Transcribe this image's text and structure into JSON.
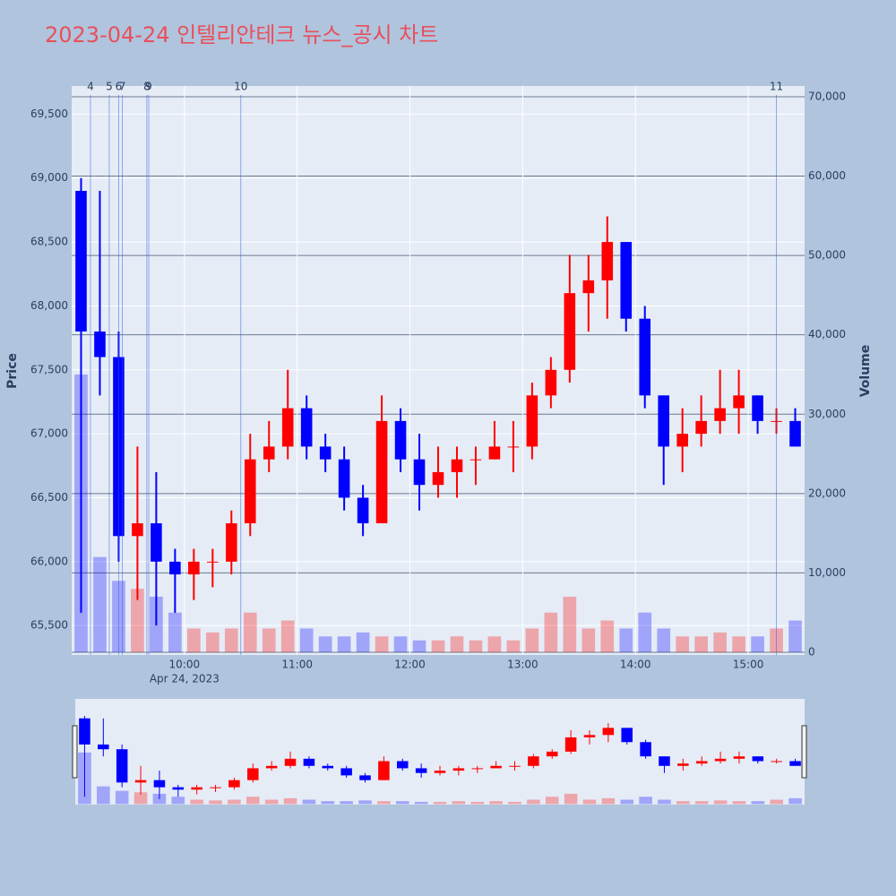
{
  "chart_data": {
    "type": "candlestick",
    "title": "2023-04-24 인텔리안테크 뉴스_공시 차트",
    "x": [
      "09:00",
      "09:10",
      "09:20",
      "09:30",
      "09:40",
      "09:50",
      "10:00",
      "10:10",
      "10:20",
      "10:30",
      "10:40",
      "10:50",
      "11:00",
      "11:10",
      "11:20",
      "11:30",
      "11:40",
      "11:50",
      "12:00",
      "12:10",
      "12:20",
      "12:30",
      "12:40",
      "12:50",
      "13:00",
      "13:10",
      "13:20",
      "13:30",
      "13:40",
      "13:50",
      "14:00",
      "14:10",
      "14:20",
      "14:30",
      "14:40",
      "14:50",
      "15:00",
      "15:10",
      "15:20"
    ],
    "open": [
      68900,
      67800,
      67600,
      66200,
      66300,
      66000,
      65900,
      66000,
      66000,
      66300,
      66800,
      66900,
      67200,
      66900,
      66800,
      66500,
      66300,
      67100,
      66800,
      66600,
      66700,
      66800,
      66800,
      66900,
      66900,
      67300,
      67500,
      68100,
      68200,
      68500,
      67900,
      67300,
      66900,
      67000,
      67100,
      67200,
      67300,
      67100,
      67100
    ],
    "high": [
      69000,
      68900,
      67800,
      66900,
      66700,
      66100,
      66100,
      66100,
      66400,
      67000,
      67100,
      67500,
      67300,
      67000,
      66900,
      66600,
      67300,
      67200,
      67000,
      66900,
      66900,
      66900,
      67100,
      67100,
      67400,
      67600,
      68400,
      68400,
      68700,
      68500,
      68000,
      67300,
      67200,
      67300,
      67500,
      67500,
      67300,
      67200,
      67200
    ],
    "low": [
      65600,
      67300,
      66000,
      65700,
      65500,
      65600,
      65700,
      65800,
      65900,
      66200,
      66700,
      66800,
      66800,
      66700,
      66400,
      66200,
      66300,
      66700,
      66400,
      66500,
      66500,
      66600,
      66800,
      66700,
      66800,
      67200,
      67400,
      67800,
      67900,
      67800,
      67200,
      66600,
      66700,
      66900,
      67000,
      67000,
      67000,
      67000,
      66900
    ],
    "close": [
      67800,
      67600,
      66200,
      66300,
      66000,
      65900,
      66000,
      66000,
      66300,
      66800,
      66900,
      67200,
      66900,
      66800,
      66500,
      66300,
      67100,
      66800,
      66600,
      66700,
      66800,
      66800,
      66900,
      66900,
      67300,
      67500,
      68100,
      68200,
      68500,
      67900,
      67300,
      66900,
      67000,
      67100,
      67200,
      67300,
      67100,
      67100,
      66900
    ],
    "volume": [
      35000,
      12000,
      9000,
      8000,
      7000,
      5000,
      3000,
      2500,
      3000,
      5000,
      3000,
      4000,
      3000,
      2000,
      2000,
      2500,
      2000,
      2000,
      1500,
      1500,
      2000,
      1500,
      2000,
      1500,
      3000,
      5000,
      7000,
      3000,
      4000,
      3000,
      5000,
      3000,
      2000,
      2000,
      2500,
      2000,
      2000,
      3000,
      4000
    ],
    "increasing_color": "#ff0000",
    "decreasing_color": "#0000ff",
    "xlim": [
      "09:00",
      "15:30"
    ],
    "xticks": [
      "10:00",
      "11:00",
      "12:00",
      "13:00",
      "14:00",
      "15:00"
    ],
    "xtick_sublabel": "Apr 24, 2023",
    "ylabel": "Price",
    "y2label": "Volume",
    "ylim": [
      65270,
      69720
    ],
    "yticks": [
      {
        "value": 65500,
        "label": "65,500"
      },
      {
        "value": 66000,
        "label": "66,000"
      },
      {
        "value": 66500,
        "label": "66,500"
      },
      {
        "value": 67000,
        "label": "67,000"
      },
      {
        "value": 67500,
        "label": "67,500"
      },
      {
        "value": 68000,
        "label": "68,000"
      },
      {
        "value": 68500,
        "label": "68,500"
      },
      {
        "value": 69000,
        "label": "69,000"
      },
      {
        "value": 69500,
        "label": "69,500"
      }
    ],
    "y2lim": [
      -340,
      71350
    ],
    "y2ticks": [
      0,
      {
        "value": 10000,
        "label": "10,000"
      },
      {
        "value": 20000,
        "label": "20,000"
      },
      {
        "value": 30000,
        "label": "30,000"
      },
      {
        "value": 40000,
        "label": "40,000"
      },
      {
        "value": 50000,
        "label": "50,000"
      },
      {
        "value": 60000,
        "label": "60,000"
      },
      {
        "value": 70000,
        "label": "70,000"
      }
    ],
    "annotations": [
      {
        "x": "09:10",
        "text": "4"
      },
      {
        "x": "09:20",
        "text": "5"
      },
      {
        "x": "09:25",
        "text": "6"
      },
      {
        "x": "09:27",
        "text": "7"
      },
      {
        "x": "09:40",
        "text": "8"
      },
      {
        "x": "09:41",
        "text": "9"
      },
      {
        "x": "10:30",
        "text": "10"
      },
      {
        "x": "15:15",
        "text": "11"
      }
    ],
    "grid": true,
    "rangeslider": true
  }
}
